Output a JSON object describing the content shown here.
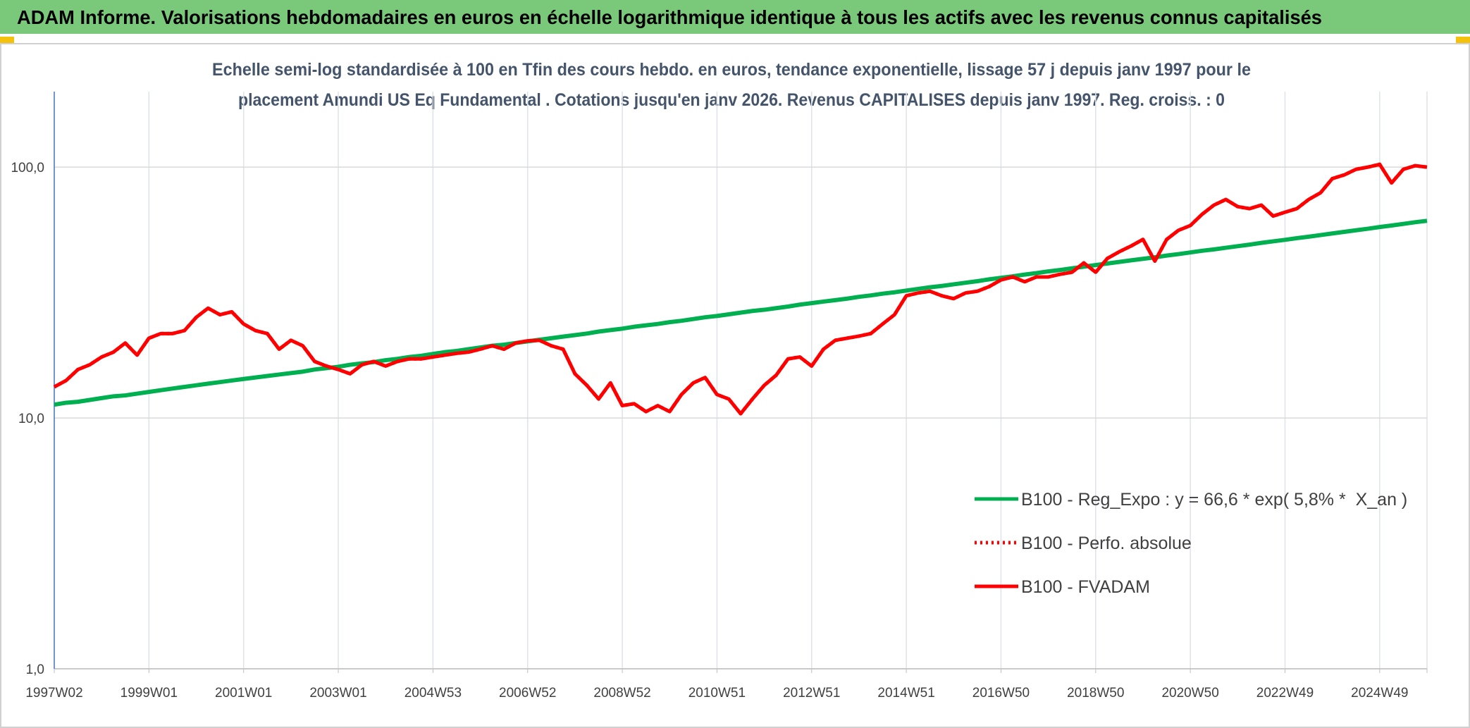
{
  "header": {
    "title": "ADAM Informe. Valorisations hebdomadaires en euros en échelle logarithmique identique à tous les actifs avec les revenus connus capitalisés"
  },
  "chart_data": {
    "type": "line",
    "title": [
      "Echelle semi-log standardisée à 100 en Tfin des cours hebdo. en euros, tendance exponentielle, lissage 57 j depuis janv 1997 pour le",
      "placement Amundi US Eq Fundamental . Cotations jusqu'en janv 2026. Revenus CAPITALISES depuis janv 1997. Reg. croiss. : 0"
    ],
    "categories": [
      "1997W02",
      null,
      null,
      null,
      null,
      null,
      null,
      null,
      "1999W01",
      null,
      null,
      null,
      null,
      null,
      null,
      null,
      "2001W01",
      null,
      null,
      null,
      null,
      null,
      null,
      null,
      "2003W01",
      null,
      null,
      null,
      null,
      null,
      null,
      null,
      "2004W53",
      null,
      null,
      null,
      null,
      null,
      null,
      null,
      "2006W52",
      null,
      null,
      null,
      null,
      null,
      null,
      null,
      "2008W52",
      null,
      null,
      null,
      null,
      null,
      null,
      null,
      "2010W51",
      null,
      null,
      null,
      null,
      null,
      null,
      null,
      "2012W51",
      null,
      null,
      null,
      null,
      null,
      null,
      null,
      "2014W51",
      null,
      null,
      null,
      null,
      null,
      null,
      null,
      "2016W50",
      null,
      null,
      null,
      null,
      null,
      null,
      null,
      "2018W50",
      null,
      null,
      null,
      null,
      null,
      null,
      null,
      "2020W50",
      null,
      null,
      null,
      null,
      null,
      null,
      null,
      "2022W49",
      null,
      null,
      null,
      null,
      null,
      null,
      null,
      "2024W49",
      null,
      null,
      null,
      null
    ],
    "log_scale": true,
    "ylim": [
      1,
      200
    ],
    "yticks": [
      {
        "value": 1,
        "label": "1,0"
      },
      {
        "value": 10,
        "label": "10,0"
      },
      {
        "value": 100,
        "label": "100,0"
      }
    ],
    "grid": true,
    "legend": "lower right",
    "series": [
      {
        "name": "B100 - Reg_Expo : y = 66,6 * exp( 5,8% *  X_an )",
        "color": "#00b050",
        "style": "solid",
        "values": [
          11.3,
          11.5,
          11.6,
          11.8,
          12.0,
          12.2,
          12.3,
          12.5,
          12.7,
          12.9,
          13.1,
          13.3,
          13.5,
          13.7,
          13.9,
          14.1,
          14.3,
          14.5,
          14.7,
          14.9,
          15.1,
          15.3,
          15.6,
          15.8,
          16.0,
          16.3,
          16.5,
          16.7,
          17.0,
          17.2,
          17.5,
          17.7,
          18.0,
          18.3,
          18.5,
          18.8,
          19.1,
          19.4,
          19.6,
          19.9,
          20.2,
          20.5,
          20.8,
          21.1,
          21.4,
          21.7,
          22.1,
          22.4,
          22.7,
          23.1,
          23.4,
          23.7,
          24.1,
          24.4,
          24.8,
          25.2,
          25.5,
          25.9,
          26.3,
          26.7,
          27.0,
          27.4,
          27.8,
          28.3,
          28.7,
          29.1,
          29.5,
          29.9,
          30.4,
          30.8,
          31.3,
          31.7,
          32.2,
          32.7,
          33.2,
          33.6,
          34.1,
          34.6,
          35.1,
          35.7,
          36.2,
          36.7,
          37.3,
          37.8,
          38.4,
          38.9,
          39.5,
          40.1,
          40.7,
          41.3,
          41.9,
          42.5,
          43.1,
          43.7,
          44.4,
          45.0,
          45.7,
          46.4,
          47.0,
          47.7,
          48.4,
          49.1,
          49.9,
          50.6,
          51.3,
          52.1,
          52.8,
          53.6,
          54.4,
          55.2,
          56.0,
          56.8,
          57.7,
          58.5,
          59.4,
          60.3,
          61.1
        ]
      },
      {
        "name": "B100 - Perfo. absolue",
        "color": "#ff0000",
        "style": "dotted",
        "values": [
          13.3,
          14.1,
          15.6,
          16.3,
          17.5,
          18.3,
          19.9,
          17.8,
          20.8,
          21.7,
          21.7,
          22.3,
          25.2,
          27.4,
          25.8,
          26.5,
          23.7,
          22.3,
          21.7,
          18.8,
          20.4,
          19.4,
          16.8,
          16.1,
          15.6,
          15.0,
          16.3,
          16.8,
          16.1,
          16.8,
          17.2,
          17.2,
          17.5,
          17.8,
          18.1,
          18.3,
          18.8,
          19.4,
          18.8,
          19.9,
          20.3,
          20.4,
          19.4,
          18.8,
          15.0,
          13.5,
          11.9,
          13.8,
          11.2,
          11.4,
          10.6,
          11.2,
          10.6,
          12.4,
          13.8,
          14.5,
          12.4,
          11.9,
          10.4,
          11.9,
          13.5,
          14.8,
          17.2,
          17.5,
          16.1,
          18.8,
          20.4,
          20.8,
          21.2,
          21.7,
          23.7,
          25.8,
          30.7,
          31.5,
          32.0,
          30.7,
          29.9,
          31.5,
          32.0,
          33.4,
          35.5,
          36.5,
          34.9,
          36.5,
          36.5,
          37.4,
          38.1,
          41.5,
          38.1,
          43.3,
          46.0,
          48.5,
          51.5,
          42.2,
          51.5,
          56.0,
          58.5,
          64.9,
          70.6,
          74.3,
          69.6,
          68.3,
          70.6,
          63.8,
          66.1,
          68.3,
          74.3,
          79.0,
          90.0,
          93.1,
          98.0,
          100,
          102.6,
          86.5,
          98.0,
          101.3,
          100
        ]
      },
      {
        "name": "B100 - FVADAM",
        "color": "#ff0000",
        "style": "solid",
        "values": [
          13.3,
          14.1,
          15.6,
          16.3,
          17.5,
          18.3,
          19.9,
          17.8,
          20.8,
          21.7,
          21.7,
          22.3,
          25.2,
          27.4,
          25.8,
          26.5,
          23.7,
          22.3,
          21.7,
          18.8,
          20.4,
          19.4,
          16.8,
          16.1,
          15.6,
          15.0,
          16.3,
          16.8,
          16.1,
          16.8,
          17.2,
          17.2,
          17.5,
          17.8,
          18.1,
          18.3,
          18.8,
          19.4,
          18.8,
          19.9,
          20.3,
          20.4,
          19.4,
          18.8,
          15.0,
          13.5,
          11.9,
          13.8,
          11.2,
          11.4,
          10.6,
          11.2,
          10.6,
          12.4,
          13.8,
          14.5,
          12.4,
          11.9,
          10.4,
          11.9,
          13.5,
          14.8,
          17.2,
          17.5,
          16.1,
          18.8,
          20.4,
          20.8,
          21.2,
          21.7,
          23.7,
          25.8,
          30.7,
          31.5,
          32.0,
          30.7,
          29.9,
          31.5,
          32.0,
          33.4,
          35.5,
          36.5,
          34.9,
          36.5,
          36.5,
          37.4,
          38.1,
          41.5,
          38.1,
          43.3,
          46.0,
          48.5,
          51.5,
          42.2,
          51.5,
          56.0,
          58.5,
          64.9,
          70.6,
          74.3,
          69.6,
          68.3,
          70.6,
          63.8,
          66.1,
          68.3,
          74.3,
          79.0,
          90.0,
          93.1,
          98.0,
          100,
          102.6,
          86.5,
          98.0,
          101.3,
          100
        ]
      }
    ]
  }
}
